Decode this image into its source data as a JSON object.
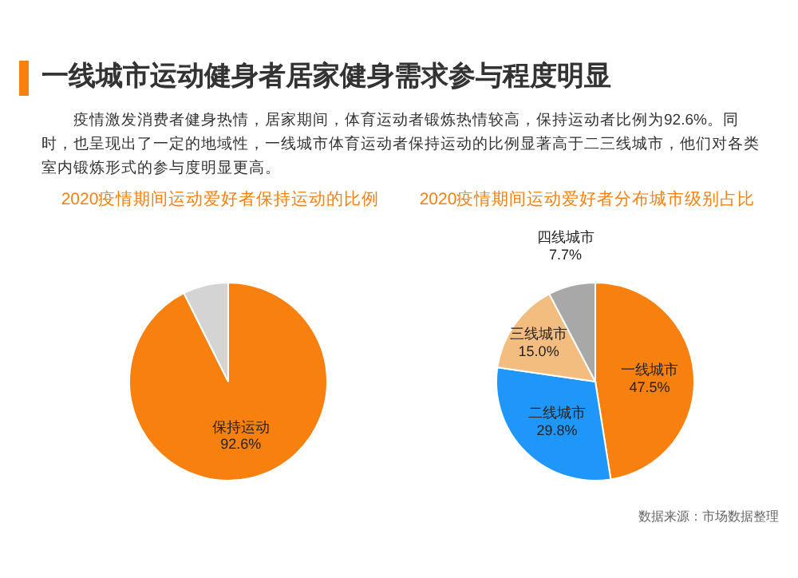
{
  "chart_data": [
    {
      "type": "other",
      "title": "一线城市运动健身者居家健身需求参与程度明显",
      "subtitle": "疫情激发消费者健身热情，居家期间，体育运动者锻炼热情较高，保持运动者比例为92.6%。同时，也呈现出了一定的地域性，一线城市体育运动者保持运动的比例显著高于二三线城市，他们对各类室内锻炼形式的参与度明显更高。"
    },
    {
      "type": "pie",
      "title": "2020疫情期间运动爱好者保持运动的比例",
      "categories": [
        "保持运动",
        null
      ],
      "values": [
        92.6,
        7.4
      ],
      "colors": [
        "#f7800f",
        "#d4d4d4"
      ],
      "value_labels": [
        "92.6%",
        null
      ]
    },
    {
      "type": "pie",
      "title": "2020疫情期间运动爱好者分布城市级别占比",
      "categories": [
        "一线城市",
        "二线城市",
        "三线城市",
        "四线城市"
      ],
      "values": [
        47.5,
        29.8,
        15.0,
        7.7
      ],
      "colors": [
        "#f7800f",
        "#1e96fa",
        "#f4bd80",
        "#a8a8a8"
      ],
      "value_labels": [
        "47.5%",
        "29.8%",
        "15.0%",
        "7.7%"
      ],
      "annotations": [
        "数据来源：市场数据整理"
      ]
    }
  ]
}
